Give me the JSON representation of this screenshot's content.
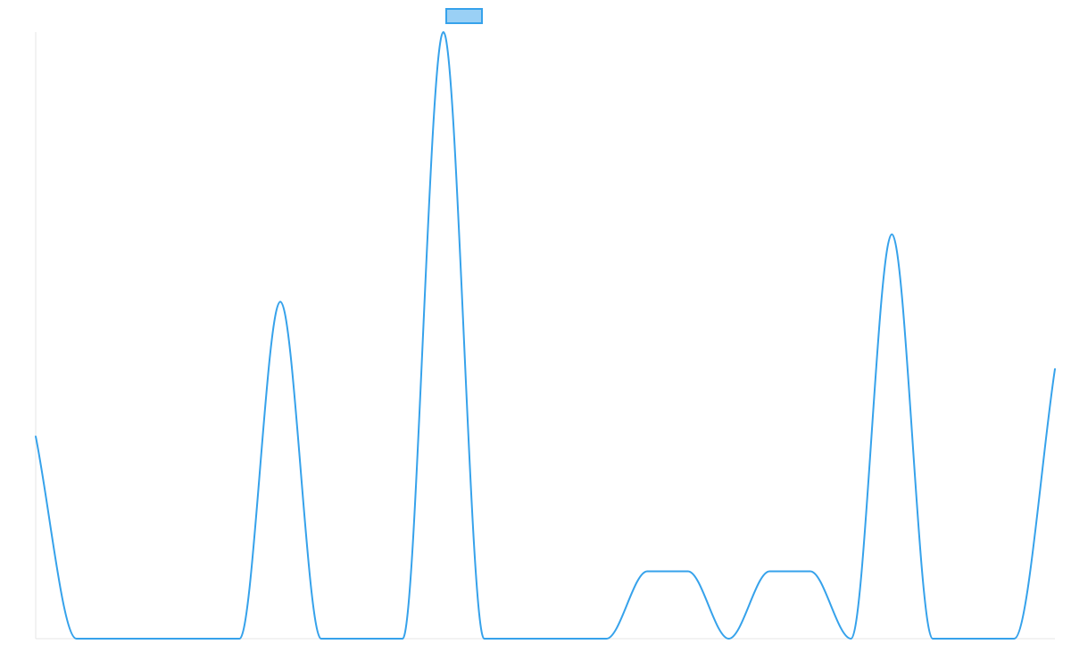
{
  "chart_data": {
    "type": "line",
    "title": "",
    "xlabel": "",
    "ylabel": "",
    "grid": false,
    "legend_position": "top-center",
    "x": [
      0,
      1,
      2,
      3,
      4,
      5,
      6,
      7,
      8,
      9,
      10,
      11,
      12,
      13,
      14,
      15,
      16,
      17,
      18,
      19,
      20,
      21,
      22,
      23,
      24,
      25
    ],
    "xlim": [
      0,
      25
    ],
    "ylim": [
      0,
      9
    ],
    "series": [
      {
        "name": "",
        "values": [
          3,
          0,
          0,
          0,
          0,
          0,
          5,
          0,
          0,
          0,
          9,
          0,
          0,
          0,
          0,
          1,
          1,
          0,
          1,
          1,
          0,
          6,
          0,
          0,
          0,
          4
        ],
        "color": "#36a2eb",
        "fill": "#9ad0f5"
      }
    ]
  }
}
